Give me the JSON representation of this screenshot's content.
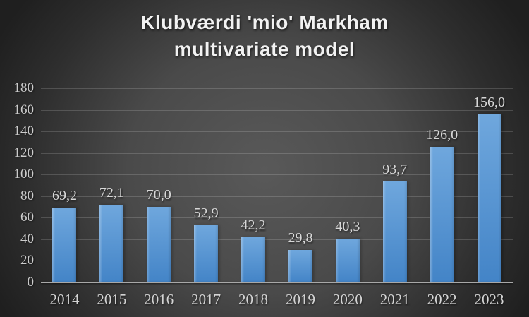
{
  "title": {
    "line1": "Klubværdi 'mio' Markham",
    "line2": "multivariate model"
  },
  "chart_data": {
    "type": "bar",
    "title": "Klubværdi 'mio' Markham multivariate model",
    "categories": [
      "2014",
      "2015",
      "2016",
      "2017",
      "2018",
      "2019",
      "2020",
      "2021",
      "2022",
      "2023"
    ],
    "values": [
      69.2,
      72.1,
      70.0,
      52.9,
      42.2,
      29.8,
      40.3,
      93.7,
      126.0,
      156.0
    ],
    "value_labels": [
      "69,2",
      "72,1",
      "70,0",
      "52,9",
      "42,2",
      "29,8",
      "40,3",
      "93,7",
      "126,0",
      "156,0"
    ],
    "y_ticks": [
      "180",
      "160",
      "140",
      "120",
      "100",
      "80",
      "60",
      "40",
      "20",
      "0"
    ],
    "ylim": [
      0,
      180
    ],
    "xlabel": "",
    "ylabel": "",
    "grid": true,
    "legend": "none",
    "decimal_separator": ","
  },
  "colors": {
    "bar_top": "#6FA7DD",
    "bar_bottom": "#4384C7",
    "bar_edge_highlight": "rgba(255,255,255,0.28)",
    "background_center": "#595959",
    "background_edge": "#1F1F1F",
    "gridline": "rgba(255,255,255,0.16)",
    "axis_line": "#A8A8A8",
    "tick_label": "#CCCCCC",
    "category_label": "#D4D4D4",
    "data_label": "#D8D8D8",
    "title_text": "#F2F2F2"
  }
}
